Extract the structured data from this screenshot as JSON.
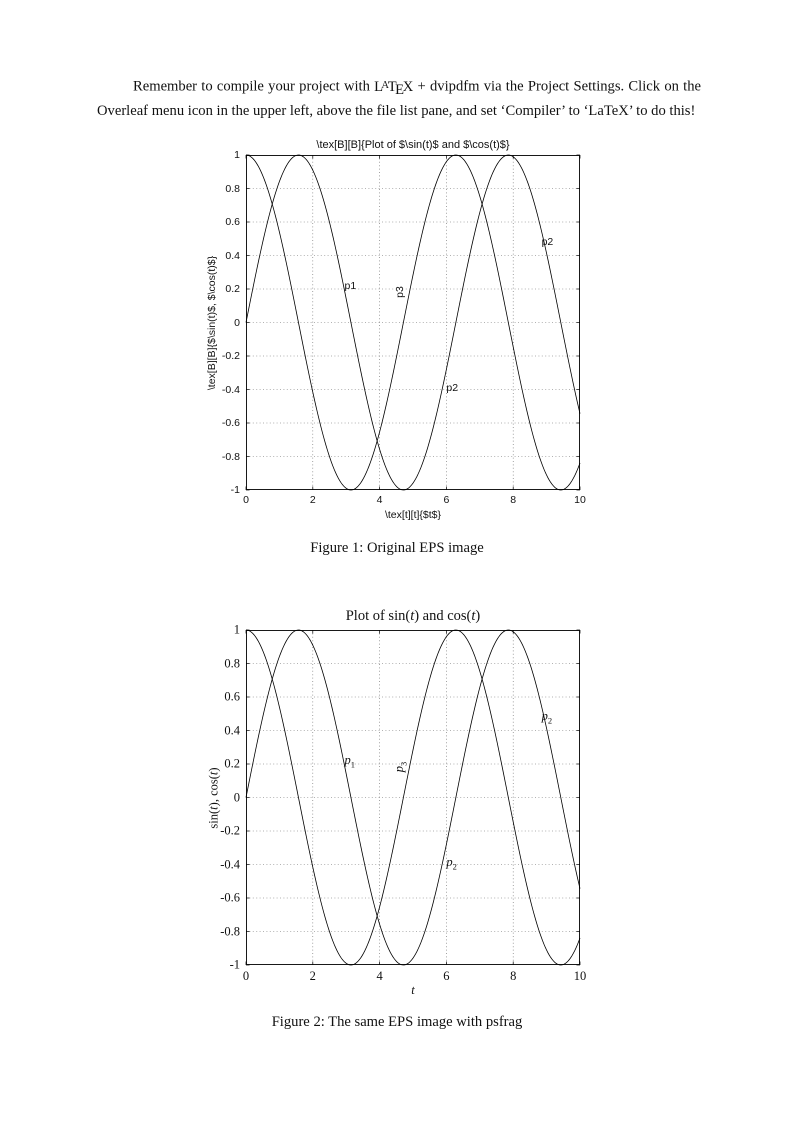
{
  "page": {
    "intro": {
      "before": "Remember to compile your project with ",
      "latex_logo": [
        "L",
        "A",
        "T",
        "E",
        "X"
      ],
      "after": " + dvipdfm via the Project Settings. Click on the Overleaf menu icon in the upper left, above the file list pane, and set ‘Compiler’ to ‘LaTeX’ to do this!"
    },
    "figure1_caption": "Figure 1: Original EPS image",
    "figure2_caption": "Figure 2: The same EPS image with psfrag"
  },
  "chart_data": [
    {
      "type": "line",
      "figure": "Figure 1",
      "title": "\\tex[B][B]{Plot of $\\sin(t)$ and $\\cos(t)$}",
      "xlabel": "\\tex[t][t]{$t$}",
      "ylabel": "\\tex[B][B]{$\\sin(t)$, $\\cos(t)$}",
      "xlim": [
        0,
        10
      ],
      "ylim": [
        -1,
        1
      ],
      "xticks": [
        "0",
        "2",
        "4",
        "6",
        "8",
        "10"
      ],
      "yticks": [
        "1",
        "0.8",
        "0.6",
        "0.4",
        "0.2",
        "0",
        "-0.2",
        "-0.4",
        "-0.6",
        "-0.8",
        "-1"
      ],
      "grid": true,
      "legend": "none",
      "label_mode": "plain",
      "series": [
        {
          "name": "sin",
          "label": "sin(t)"
        },
        {
          "name": "cos",
          "label": "cos(t)"
        }
      ],
      "annotations": [
        {
          "text": "p1",
          "x": 2.95,
          "y": 0.22,
          "rotate": 0
        },
        {
          "text": "p3",
          "x": 4.62,
          "y": 0.18,
          "rotate": -90
        },
        {
          "text": "p2",
          "x": 6.0,
          "y": -0.39,
          "rotate": 0
        },
        {
          "text": "p2",
          "x": 8.85,
          "y": 0.48,
          "rotate": 0
        }
      ]
    },
    {
      "type": "line",
      "figure": "Figure 2",
      "title": "Plot of sin(t) and cos(t)",
      "xlabel": "t",
      "ylabel": "sin(t), cos(t)",
      "xlim": [
        0,
        10
      ],
      "ylim": [
        -1,
        1
      ],
      "xticks": [
        "0",
        "2",
        "4",
        "6",
        "8",
        "10"
      ],
      "yticks": [
        "1",
        "0.8",
        "0.6",
        "0.4",
        "0.2",
        "0",
        "-0.2",
        "-0.4",
        "-0.6",
        "-0.8",
        "-1"
      ],
      "grid": true,
      "legend": "none",
      "label_mode": "math",
      "series": [
        {
          "name": "sin",
          "label": "sin(t)"
        },
        {
          "name": "cos",
          "label": "cos(t)"
        }
      ],
      "annotations": [
        {
          "text": "p1",
          "x": 2.95,
          "y": 0.22,
          "rotate": 0
        },
        {
          "text": "p3",
          "x": 4.62,
          "y": 0.18,
          "rotate": -90
        },
        {
          "text": "p2",
          "x": 6.0,
          "y": -0.39,
          "rotate": 0
        },
        {
          "text": "p2",
          "x": 8.85,
          "y": 0.48,
          "rotate": 0
        }
      ]
    }
  ]
}
